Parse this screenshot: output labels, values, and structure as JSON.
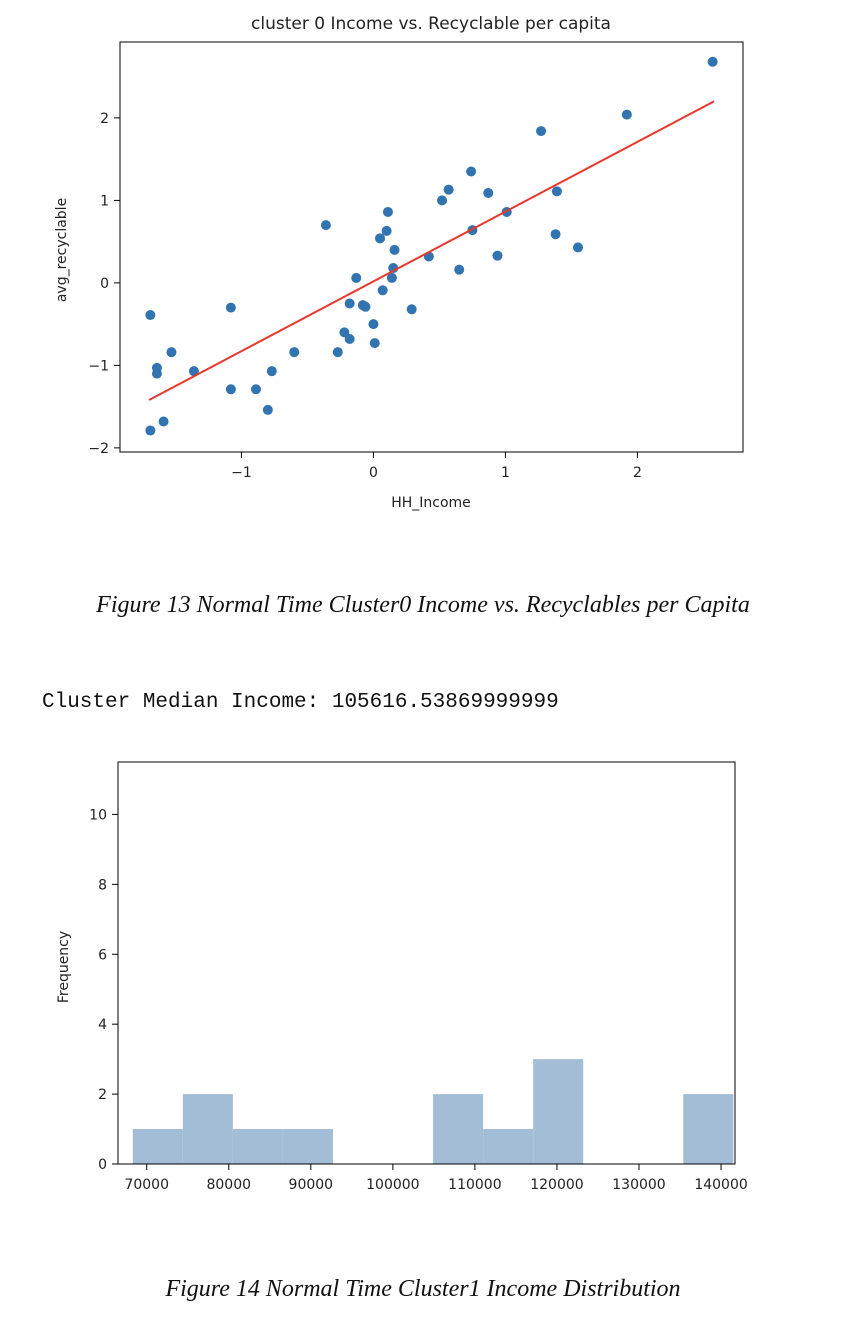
{
  "chart_data": [
    {
      "type": "scatter",
      "title": "cluster 0 Income vs. Recyclable per capita",
      "xlabel": "HH_Income",
      "ylabel": "avg_recyclable",
      "xlim": [
        -1.92,
        2.8
      ],
      "ylim": [
        -2.05,
        2.92
      ],
      "xticks": [
        -1,
        0,
        1,
        2
      ],
      "xtick_labels": [
        "−1",
        "0",
        "1",
        "2"
      ],
      "yticks": [
        -2,
        -1,
        0,
        1,
        2
      ],
      "ytick_labels": [
        "−2",
        "−1",
        "0",
        "1",
        "2"
      ],
      "grid": false,
      "point_color": "#3274b0",
      "line_color": "#e8372c",
      "fit_line": {
        "x": [
          -1.7,
          2.58
        ],
        "y": [
          -1.42,
          2.2
        ]
      },
      "points": [
        [
          -1.69,
          -0.39
        ],
        [
          -1.69,
          -1.79
        ],
        [
          -1.64,
          -1.03
        ],
        [
          -1.64,
          -1.1
        ],
        [
          -1.59,
          -1.68
        ],
        [
          -1.53,
          -0.84
        ],
        [
          -1.36,
          -1.07
        ],
        [
          -1.08,
          -0.3
        ],
        [
          -1.08,
          -1.29
        ],
        [
          -0.89,
          -1.29
        ],
        [
          -0.8,
          -1.54
        ],
        [
          -0.77,
          -1.07
        ],
        [
          -0.6,
          -0.84
        ],
        [
          -0.36,
          0.7
        ],
        [
          -0.27,
          -0.84
        ],
        [
          -0.22,
          -0.6
        ],
        [
          -0.18,
          -0.25
        ],
        [
          -0.18,
          -0.68
        ],
        [
          -0.13,
          0.06
        ],
        [
          -0.08,
          -0.27
        ],
        [
          -0.06,
          -0.29
        ],
        [
          0.0,
          -0.5
        ],
        [
          0.01,
          -0.73
        ],
        [
          0.05,
          0.54
        ],
        [
          0.07,
          -0.09
        ],
        [
          0.1,
          0.63
        ],
        [
          0.11,
          0.86
        ],
        [
          0.14,
          0.06
        ],
        [
          0.15,
          0.18
        ],
        [
          0.16,
          0.4
        ],
        [
          0.29,
          -0.32
        ],
        [
          0.42,
          0.32
        ],
        [
          0.52,
          1.0
        ],
        [
          0.57,
          1.13
        ],
        [
          0.65,
          0.16
        ],
        [
          0.74,
          1.35
        ],
        [
          0.75,
          0.64
        ],
        [
          0.87,
          1.09
        ],
        [
          0.94,
          0.33
        ],
        [
          1.01,
          0.86
        ],
        [
          1.27,
          1.84
        ],
        [
          1.38,
          0.59
        ],
        [
          1.39,
          1.11
        ],
        [
          1.55,
          0.43
        ],
        [
          1.92,
          2.04
        ],
        [
          2.57,
          2.68
        ]
      ]
    },
    {
      "type": "bar",
      "title": "",
      "xlabel": "",
      "ylabel": "Frequency",
      "xlim": [
        66500,
        141700
      ],
      "ylim": [
        0,
        11.5
      ],
      "xticks": [
        70000,
        80000,
        90000,
        100000,
        110000,
        120000,
        130000,
        140000
      ],
      "xtick_labels": [
        "70000",
        "80000",
        "90000",
        "100000",
        "110000",
        "120000",
        "130000",
        "140000"
      ],
      "yticks": [
        0,
        2,
        4,
        6,
        8,
        10
      ],
      "ytick_labels": [
        "0",
        "2",
        "4",
        "6",
        "8",
        "10"
      ],
      "grid": false,
      "bar_color": "#a3bdd6",
      "bins": [
        68300,
        74400,
        80500,
        86600,
        92700,
        98800,
        104900,
        111000,
        117100,
        123200,
        129300,
        135400
      ],
      "counts": [
        1,
        2,
        1,
        1,
        0,
        0,
        2,
        1,
        3,
        0,
        0,
        2
      ]
    }
  ],
  "captions": {
    "figure13": "Figure 13 Normal Time Cluster0 Income vs. Recyclables per Capita",
    "figure14": "Figure 14 Normal Time Cluster1 Income Distribution"
  },
  "median_text": "Cluster Median Income: 105616.53869999999"
}
